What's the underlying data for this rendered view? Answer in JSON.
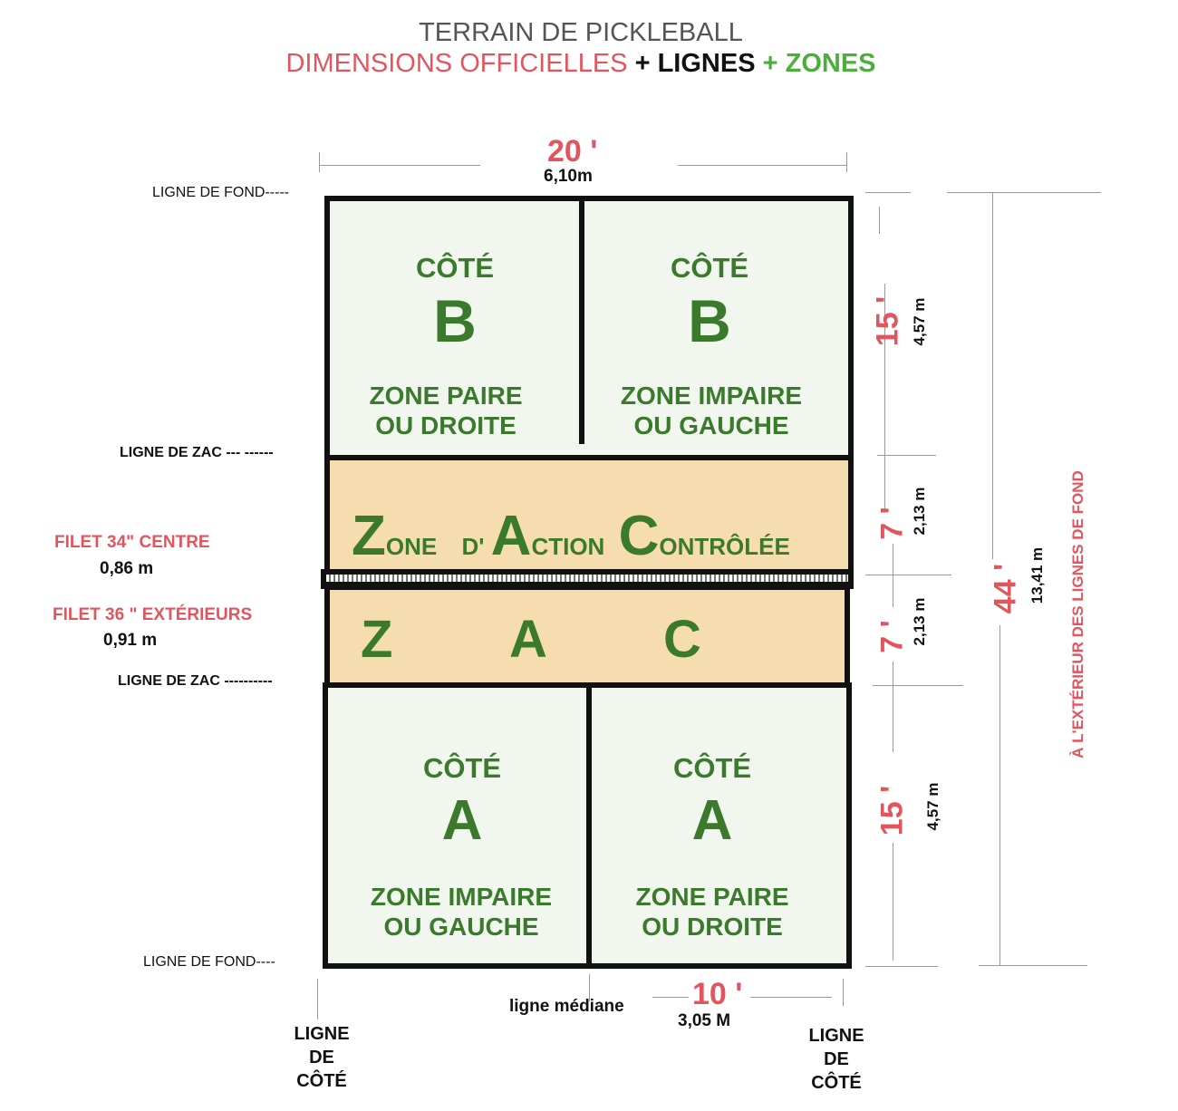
{
  "header": {
    "title": "TERRAIN DE PICKLEBALL",
    "subtitle_dims": "DIMENSIONS OFFICIELLES",
    "subtitle_plus1": "+",
    "subtitle_lines": "LIGNES",
    "subtitle_plus2": "+",
    "subtitle_zones": "ZONES"
  },
  "width": {
    "feet": "20 '",
    "meters": "6,10m"
  },
  "left_labels": {
    "baseline_top": "LIGNE DE FOND-----",
    "zac_top": "LIGNE DE ZAC --- ------",
    "net_center": "FILET 34\"  CENTRE",
    "net_center_m": "0,86 m",
    "net_outer": "FILET 36 \"  EXTÉRIEURS",
    "net_outer_m": "0,91 m",
    "zac_bottom": "LIGNE  DE  ZAC ----------",
    "baseline_bottom": "LIGNE DE FOND----"
  },
  "court": {
    "top_left": {
      "side": "CÔTÉ",
      "letter": "B",
      "zone1": "ZONE PAIRE",
      "zone2": "OU DROITE"
    },
    "top_right": {
      "side": "CÔTÉ",
      "letter": "B",
      "zone1": "ZONE IMPAIRE",
      "zone2": "OU GAUCHE"
    },
    "kitchen_top": {
      "Z": "Z",
      "one": "ONE",
      "d": "D'",
      "A": "A",
      "ction": "CTION",
      "C": "C",
      "ontrolee": "ONTRÔLÉE"
    },
    "kitchen_bottom": {
      "Z": "Z",
      "A": "A",
      "C": "C"
    },
    "bottom_left": {
      "side": "CÔTÉ",
      "letter": "A",
      "zone1": "ZONE IMPAIRE",
      "zone2": "OU GAUCHE"
    },
    "bottom_right": {
      "side": "CÔTÉ",
      "letter": "A",
      "zone1": "ZONE PAIRE",
      "zone2": "OU DROITE"
    }
  },
  "right_dims": {
    "top_ft": "15 '",
    "top_m": "4,57 m",
    "zac1_ft": "7 '",
    "zac1_m": "2,13 m",
    "zac2_ft": "7 '",
    "zac2_m": "2,13 m",
    "bot_ft": "15 '",
    "bot_m": "4,57 m",
    "total_ft": "44 '",
    "total_m": "13,41 m",
    "total_note": "À L'EXTÉRIEUR DES LIGNES DE FOND"
  },
  "bottom": {
    "centerline": "ligne médiane",
    "half_ft": "10 '",
    "half_m": "3,05 M",
    "sideline_left": [
      "LIGNE",
      "DE",
      "CÔTÉ"
    ],
    "sideline_right": [
      "LIGNE",
      "DE",
      "CÔTÉ"
    ]
  },
  "colors": {
    "red": "#e2555e",
    "green": "#3b7a2c",
    "court": "#f1f6ef",
    "kitchen": "#f5ddb0",
    "lines": "#111111"
  }
}
